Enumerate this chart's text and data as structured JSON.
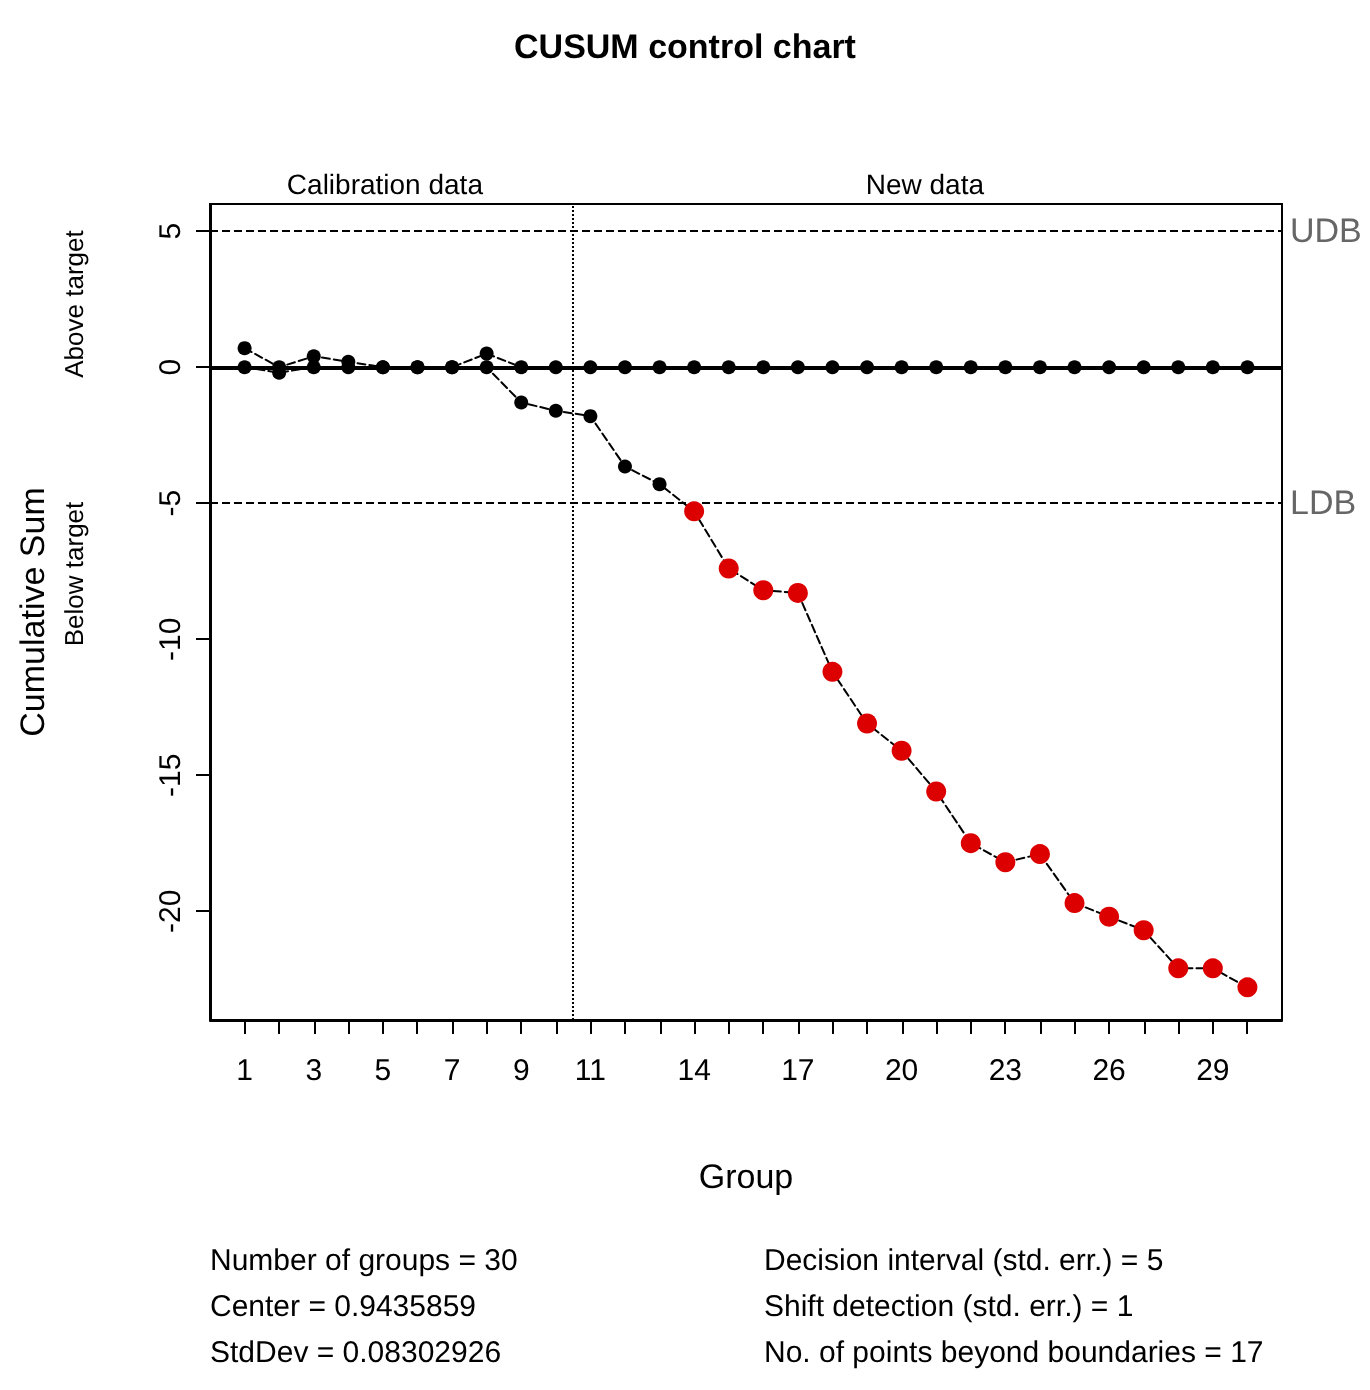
{
  "chart_data": {
    "type": "line",
    "title": "CUSUM control chart",
    "xlabel": "Group",
    "ylabel": "Cumulative Sum",
    "x": [
      1,
      2,
      3,
      4,
      5,
      6,
      7,
      8,
      9,
      10,
      11,
      12,
      13,
      14,
      15,
      16,
      17,
      18,
      19,
      20,
      21,
      22,
      23,
      24,
      25,
      26,
      27,
      28,
      29,
      30
    ],
    "series": [
      {
        "color": "#000000",
        "values": [
          0.7,
          0,
          0.4,
          0.2,
          0,
          0,
          0,
          0.5,
          0,
          0,
          0,
          0,
          0,
          0,
          0,
          0,
          0,
          0,
          0,
          0,
          0,
          0,
          0,
          0,
          0,
          0,
          0,
          0,
          0,
          0
        ]
      },
      {
        "color": "#000000",
        "values": [
          0,
          -0.2,
          0,
          0,
          0,
          0,
          0,
          0,
          -1.3,
          -1.6,
          -1.8,
          -3.65,
          -4.3,
          -5.3,
          -7.4,
          -8.2,
          -8.3,
          -11.2,
          -13.1,
          -14.1,
          -15.6,
          -17.5,
          -18.2,
          -17.9,
          -19.7,
          -20.2,
          -20.7,
          -22.1,
          -22.1,
          -22.8
        ],
        "colors": [
          "#000000",
          "#000000",
          "#000000",
          "#000000",
          "#000000",
          "#000000",
          "#000000",
          "#000000",
          "#000000",
          "#000000",
          "#000000",
          "#000000",
          "#000000",
          "#dd0000",
          "#dd0000",
          "#dd0000",
          "#dd0000",
          "#dd0000",
          "#dd0000",
          "#dd0000",
          "#dd0000",
          "#dd0000",
          "#dd0000",
          "#dd0000",
          "#dd0000",
          "#dd0000",
          "#dd0000",
          "#dd0000",
          "#dd0000",
          "#dd0000"
        ]
      }
    ],
    "xlim": [
      0,
      31
    ],
    "xticks": [
      1,
      {
        "value": 2,
        "label": null
      },
      3,
      {
        "value": 4,
        "label": null
      },
      5,
      {
        "value": 6,
        "label": null
      },
      7,
      {
        "value": 8,
        "label": null
      },
      9,
      {
        "value": 10,
        "label": null
      },
      11,
      {
        "value": 12,
        "label": null
      },
      {
        "value": 13,
        "label": null
      },
      14,
      {
        "value": 15,
        "label": null
      },
      {
        "value": 16,
        "label": null
      },
      17,
      {
        "value": 18,
        "label": null
      },
      {
        "value": 19,
        "label": null
      },
      20,
      {
        "value": 21,
        "label": null
      },
      {
        "value": 22,
        "label": null
      },
      23,
      {
        "value": 24,
        "label": null
      },
      {
        "value": 25,
        "label": null
      },
      26,
      {
        "value": 27,
        "label": null
      },
      {
        "value": 28,
        "label": null
      },
      29,
      {
        "value": 30,
        "label": null
      }
    ],
    "ylim": [
      -24,
      6
    ],
    "yticks": [
      -20,
      -15,
      -10,
      -5,
      0,
      5
    ],
    "ref_lines": [
      {
        "axis": "y",
        "value": 0,
        "label": null,
        "color": "#000000",
        "line_style": "solid"
      },
      {
        "axis": "y",
        "value": 5,
        "label": "UDB",
        "color": "#000000",
        "line_style": "dashed"
      },
      {
        "axis": "y",
        "value": -5,
        "label": "LDB",
        "color": "#000000",
        "line_style": "dashed"
      },
      {
        "axis": "x",
        "value": 10.5,
        "label": null,
        "color": "#000000",
        "line_style": "dotted"
      }
    ],
    "annotations": [
      "Calibration data",
      "New data",
      "Above target",
      "Below target",
      "Number of groups = 30",
      "Center = 0.9435859",
      "StdDev = 0.08302926",
      "Decision interval (std. err.) = 5",
      "Shift detection (std. err.) = 1",
      "No. of points beyond boundaries = 17"
    ],
    "marker": "circle",
    "line_style": "dashed",
    "grid": false
  }
}
